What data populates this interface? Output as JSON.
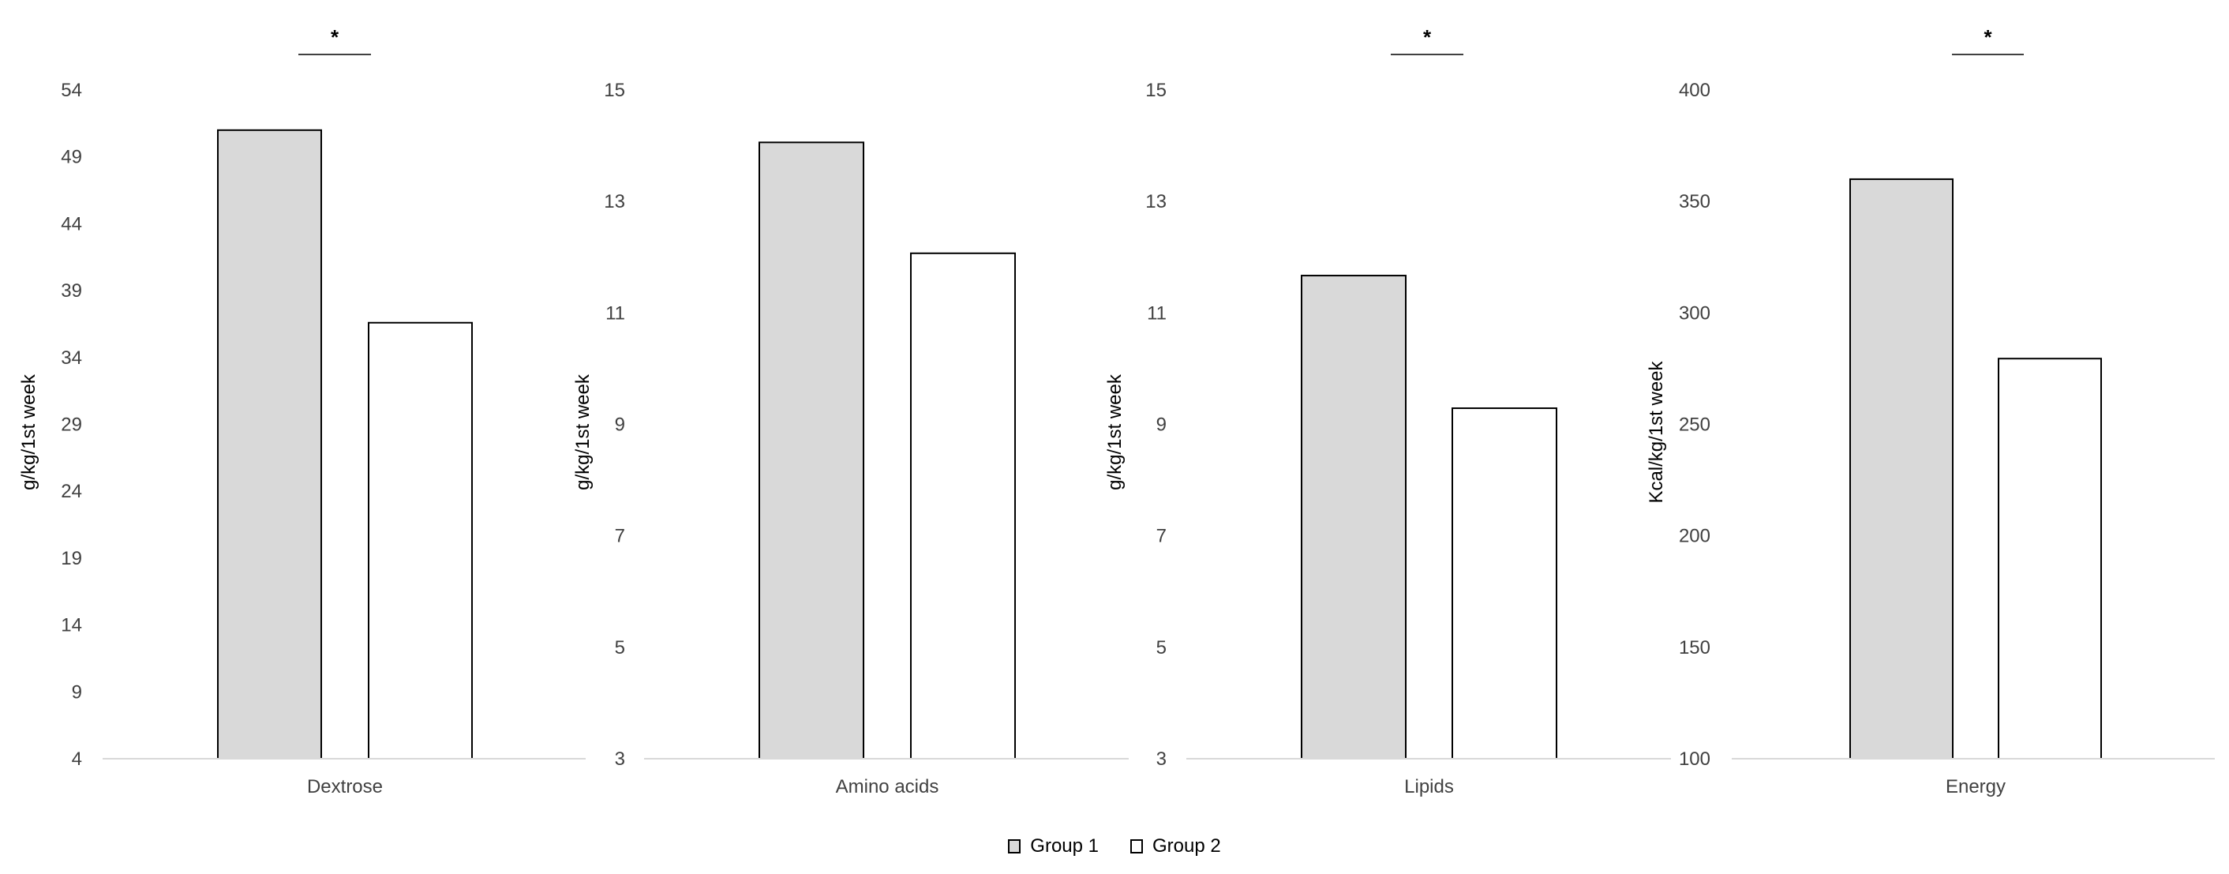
{
  "chart_data": [
    {
      "type": "bar",
      "categories": [
        "Dextrose"
      ],
      "series": [
        {
          "name": "Group 1",
          "values": [
            51
          ]
        },
        {
          "name": "Group 2",
          "values": [
            36.6
          ]
        }
      ],
      "ylabel": "g/kg/1st week",
      "ylim": [
        4,
        54
      ],
      "yticks": [
        4,
        9,
        14,
        19,
        24,
        29,
        34,
        39,
        44,
        49,
        54
      ],
      "significance_marker": "*",
      "grid": false
    },
    {
      "type": "bar",
      "categories": [
        "Amino acids"
      ],
      "series": [
        {
          "name": "Group 1",
          "values": [
            14.06
          ]
        },
        {
          "name": "Group 2",
          "values": [
            12.07
          ]
        }
      ],
      "ylabel": "g/kg/1st week",
      "ylim": [
        3,
        15
      ],
      "yticks": [
        3,
        5,
        7,
        9,
        11,
        13,
        15
      ],
      "significance_marker": "",
      "grid": false
    },
    {
      "type": "bar",
      "categories": [
        "Lipids"
      ],
      "series": [
        {
          "name": "Group 1",
          "values": [
            11.67
          ]
        },
        {
          "name": "Group 2",
          "values": [
            9.29
          ]
        }
      ],
      "ylabel": "g/kg/1st week",
      "ylim": [
        3,
        15
      ],
      "yticks": [
        3,
        5,
        7,
        9,
        11,
        13,
        15
      ],
      "significance_marker": "*",
      "grid": false
    },
    {
      "type": "bar",
      "categories": [
        "Energy"
      ],
      "series": [
        {
          "name": "Group 1",
          "values": [
            360
          ]
        },
        {
          "name": "Group 2",
          "values": [
            279.5
          ]
        }
      ],
      "ylabel": "Kcal/kg/1st week",
      "ylim": [
        100,
        400
      ],
      "yticks": [
        100,
        150,
        200,
        250,
        300,
        350,
        400
      ],
      "significance_marker": "*",
      "grid": false
    }
  ],
  "legend": {
    "placement": "bottom-center",
    "items": [
      {
        "label": "Group 1",
        "color": "#d9d9d9"
      },
      {
        "label": "Group 2",
        "color": "#ffffff"
      }
    ]
  },
  "colors": {
    "group1": "#d9d9d9",
    "group2": "#ffffff",
    "outline": "#000000",
    "axis": "#d9d9d9",
    "text": "#404040"
  }
}
